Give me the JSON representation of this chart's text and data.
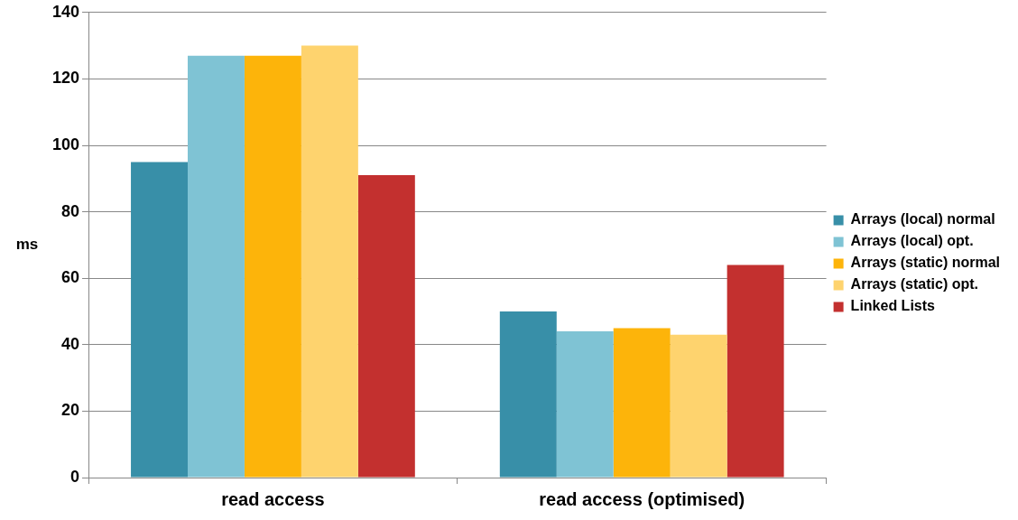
{
  "chart_data": {
    "type": "bar",
    "ylabel": "ms",
    "categories": [
      "read access",
      "read access (optimised)"
    ],
    "series": [
      {
        "name": "Arrays (local) normal",
        "color": "#388fa8",
        "values": [
          95,
          50
        ]
      },
      {
        "name": "Arrays (local) opt.",
        "color": "#7fc3d4",
        "values": [
          127,
          44
        ]
      },
      {
        "name": "Arrays (static) normal",
        "color": "#fdb40a",
        "values": [
          127,
          45
        ]
      },
      {
        "name": "Arrays (static) opt.",
        "color": "#fed36e",
        "values": [
          130,
          43
        ]
      },
      {
        "name": "Linked Lists",
        "color": "#c3302f",
        "values": [
          91,
          64
        ]
      }
    ],
    "ylim": [
      0,
      140
    ],
    "yticks": [
      0,
      20,
      40,
      60,
      80,
      100,
      120,
      140
    ],
    "grid": "y",
    "legend": "right"
  }
}
